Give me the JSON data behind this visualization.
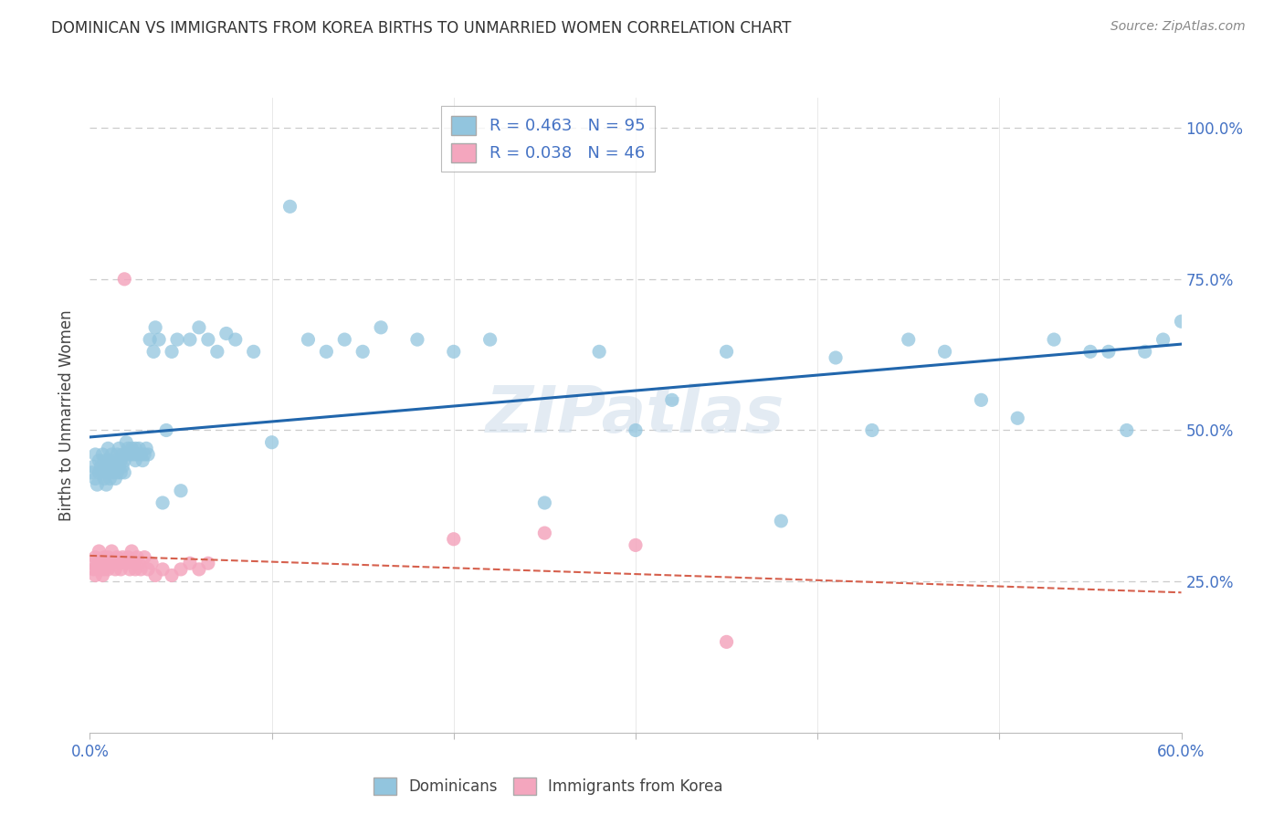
{
  "title": "DOMINICAN VS IMMIGRANTS FROM KOREA BIRTHS TO UNMARRIED WOMEN CORRELATION CHART",
  "source": "Source: ZipAtlas.com",
  "ylabel": "Births to Unmarried Women",
  "x_min": 0.0,
  "x_max": 0.6,
  "y_min": 0.0,
  "y_max": 1.05,
  "dominican_R": 0.463,
  "dominican_N": 95,
  "korea_R": 0.038,
  "korea_N": 46,
  "blue_color": "#92c5de",
  "pink_color": "#f4a6be",
  "blue_line_color": "#2166ac",
  "pink_line_color": "#d6604d",
  "legend_label_blue": "Dominicans",
  "legend_label_pink": "Immigrants from Korea",
  "dominican_x": [
    0.001,
    0.002,
    0.003,
    0.003,
    0.004,
    0.005,
    0.005,
    0.006,
    0.007,
    0.007,
    0.008,
    0.008,
    0.009,
    0.009,
    0.01,
    0.01,
    0.01,
    0.011,
    0.011,
    0.012,
    0.012,
    0.013,
    0.013,
    0.014,
    0.014,
    0.015,
    0.015,
    0.016,
    0.016,
    0.017,
    0.017,
    0.018,
    0.018,
    0.019,
    0.019,
    0.02,
    0.02,
    0.021,
    0.022,
    0.023,
    0.024,
    0.025,
    0.025,
    0.026,
    0.027,
    0.028,
    0.029,
    0.03,
    0.031,
    0.032,
    0.033,
    0.035,
    0.036,
    0.038,
    0.04,
    0.042,
    0.045,
    0.048,
    0.05,
    0.055,
    0.06,
    0.065,
    0.07,
    0.075,
    0.08,
    0.09,
    0.1,
    0.11,
    0.12,
    0.13,
    0.14,
    0.15,
    0.16,
    0.18,
    0.2,
    0.22,
    0.25,
    0.28,
    0.3,
    0.32,
    0.35,
    0.38,
    0.41,
    0.43,
    0.45,
    0.47,
    0.49,
    0.51,
    0.53,
    0.55,
    0.56,
    0.57,
    0.58,
    0.59,
    0.6
  ],
  "dominican_y": [
    0.43,
    0.44,
    0.42,
    0.46,
    0.41,
    0.43,
    0.45,
    0.44,
    0.43,
    0.46,
    0.42,
    0.45,
    0.41,
    0.44,
    0.43,
    0.45,
    0.47,
    0.44,
    0.42,
    0.44,
    0.46,
    0.43,
    0.45,
    0.42,
    0.44,
    0.43,
    0.46,
    0.44,
    0.47,
    0.45,
    0.43,
    0.44,
    0.46,
    0.43,
    0.45,
    0.46,
    0.48,
    0.47,
    0.46,
    0.47,
    0.46,
    0.45,
    0.47,
    0.46,
    0.47,
    0.46,
    0.45,
    0.46,
    0.47,
    0.46,
    0.65,
    0.63,
    0.67,
    0.65,
    0.38,
    0.5,
    0.63,
    0.65,
    0.4,
    0.65,
    0.67,
    0.65,
    0.63,
    0.66,
    0.65,
    0.63,
    0.48,
    0.87,
    0.65,
    0.63,
    0.65,
    0.63,
    0.67,
    0.65,
    0.63,
    0.65,
    0.38,
    0.63,
    0.5,
    0.55,
    0.63,
    0.35,
    0.62,
    0.5,
    0.65,
    0.63,
    0.55,
    0.52,
    0.65,
    0.63,
    0.63,
    0.5,
    0.63,
    0.65,
    0.68
  ],
  "korea_x": [
    0.001,
    0.002,
    0.003,
    0.003,
    0.004,
    0.005,
    0.005,
    0.006,
    0.007,
    0.008,
    0.008,
    0.009,
    0.01,
    0.01,
    0.011,
    0.012,
    0.013,
    0.014,
    0.015,
    0.016,
    0.017,
    0.018,
    0.019,
    0.02,
    0.021,
    0.022,
    0.023,
    0.024,
    0.025,
    0.026,
    0.027,
    0.028,
    0.03,
    0.032,
    0.034,
    0.036,
    0.04,
    0.045,
    0.05,
    0.055,
    0.06,
    0.065,
    0.2,
    0.25,
    0.3,
    0.35
  ],
  "korea_y": [
    0.28,
    0.27,
    0.26,
    0.29,
    0.27,
    0.28,
    0.3,
    0.27,
    0.26,
    0.29,
    0.27,
    0.28,
    0.27,
    0.29,
    0.28,
    0.3,
    0.28,
    0.27,
    0.29,
    0.28,
    0.27,
    0.29,
    0.75,
    0.28,
    0.29,
    0.27,
    0.3,
    0.28,
    0.27,
    0.29,
    0.28,
    0.27,
    0.29,
    0.27,
    0.28,
    0.26,
    0.27,
    0.26,
    0.27,
    0.28,
    0.27,
    0.28,
    0.32,
    0.33,
    0.31,
    0.15
  ]
}
